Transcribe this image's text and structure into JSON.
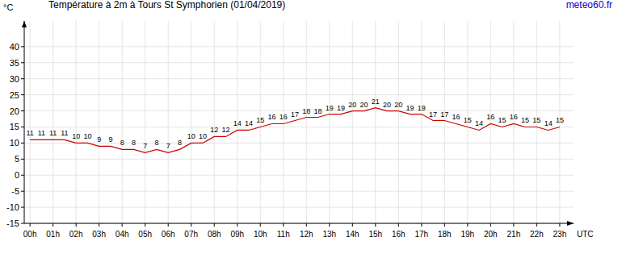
{
  "chart_data": {
    "type": "line",
    "title": "Température à 2m à Tours St Symphorien (01/04/2019)",
    "source": "meteo60.fr",
    "y_label": "°C",
    "x_label": "UTC",
    "x": [
      0,
      0.5,
      1,
      1.5,
      2,
      2.5,
      3,
      3.5,
      4,
      4.5,
      5,
      5.5,
      6,
      6.5,
      7,
      7.5,
      8,
      8.5,
      9,
      9.5,
      10,
      10.5,
      11,
      11.5,
      12,
      12.5,
      13,
      13.5,
      14,
      14.5,
      15,
      15.5,
      16,
      16.5,
      17,
      17.5,
      18,
      18.5,
      19,
      19.5,
      20,
      20.5,
      21,
      21.5,
      22,
      22.5,
      23
    ],
    "values": [
      11,
      11,
      11,
      11,
      10,
      10,
      9,
      9,
      8,
      8,
      7,
      8,
      7,
      8,
      10,
      10,
      12,
      12,
      14,
      14,
      15,
      16,
      16,
      17,
      18,
      18,
      19,
      19,
      20,
      20,
      21,
      20,
      20,
      19,
      19,
      17,
      17,
      16,
      15,
      14,
      16,
      15,
      16,
      15,
      15,
      14,
      15
    ],
    "color": "#cc0000",
    "xlim": [
      -0.25,
      23.6
    ],
    "ylim": [
      -15,
      48
    ],
    "xticks": [
      {
        "value": 0,
        "label": "00h"
      },
      {
        "value": 1,
        "label": "01h"
      },
      {
        "value": 2,
        "label": "02h"
      },
      {
        "value": 3,
        "label": "03h"
      },
      {
        "value": 4,
        "label": "04h"
      },
      {
        "value": 5,
        "label": "05h"
      },
      {
        "value": 6,
        "label": "06h"
      },
      {
        "value": 7,
        "label": "07h"
      },
      {
        "value": 8,
        "label": "08h"
      },
      {
        "value": 9,
        "label": "09h"
      },
      {
        "value": 10,
        "label": "10h"
      },
      {
        "value": 11,
        "label": "11h"
      },
      {
        "value": 12,
        "label": "12h"
      },
      {
        "value": 13,
        "label": "13h"
      },
      {
        "value": 14,
        "label": "14h"
      },
      {
        "value": 15,
        "label": "15h"
      },
      {
        "value": 16,
        "label": "16h"
      },
      {
        "value": 17,
        "label": "17h"
      },
      {
        "value": 18,
        "label": "18h"
      },
      {
        "value": 19,
        "label": "19h"
      },
      {
        "value": 20,
        "label": "20h"
      },
      {
        "value": 21,
        "label": "21h"
      },
      {
        "value": 22,
        "label": "22h"
      },
      {
        "value": 23,
        "label": "23h"
      }
    ],
    "yticks": [
      -15,
      -10,
      -5,
      0,
      5,
      10,
      15,
      20,
      25,
      30,
      35,
      40
    ],
    "grid": true,
    "data_labels": true
  }
}
